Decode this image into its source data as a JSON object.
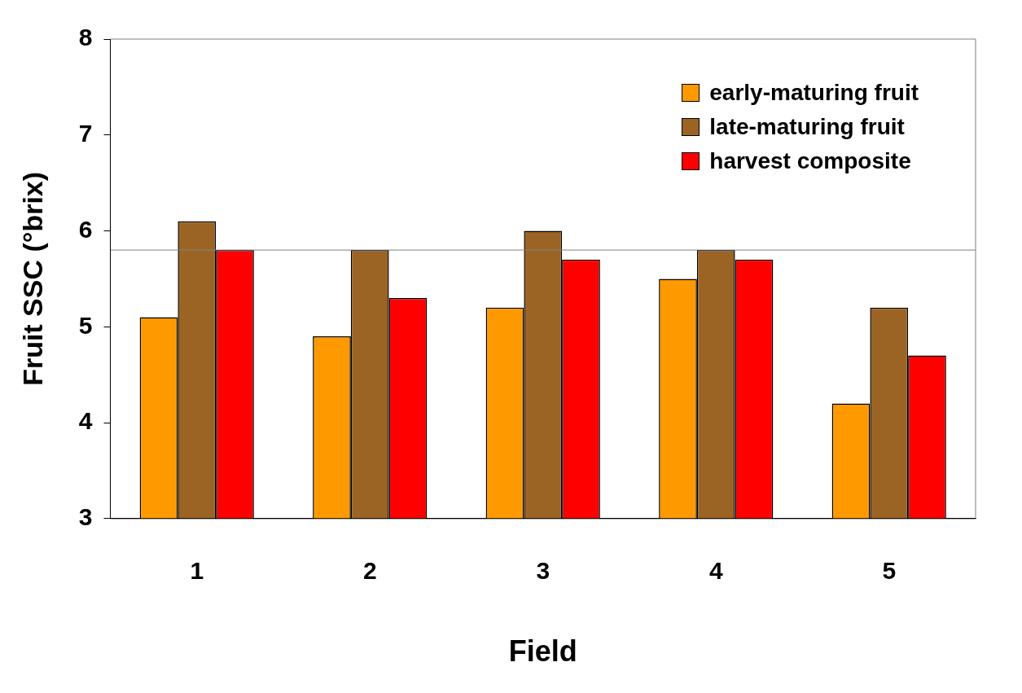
{
  "chart_data": {
    "type": "bar",
    "xlabel": "Field",
    "ylabel": "Fruit SSC (°brix)",
    "categories": [
      "1",
      "2",
      "3",
      "4",
      "5"
    ],
    "series": [
      {
        "name": "early-maturing fruit",
        "color": "#ff9900",
        "values": [
          5.1,
          4.9,
          5.2,
          5.5,
          4.2
        ]
      },
      {
        "name": "late-maturing fruit",
        "color": "#9c6424",
        "values": [
          6.1,
          5.8,
          6.0,
          5.8,
          5.2
        ]
      },
      {
        "name": "harvest composite",
        "color": "#ff0000",
        "values": [
          5.8,
          5.3,
          5.7,
          5.7,
          4.7
        ]
      }
    ],
    "ylim": [
      3,
      8
    ],
    "yticks": [
      3,
      4,
      5,
      6,
      7,
      8
    ],
    "grid": false,
    "legend": "top right",
    "ref_lines": [
      {
        "axis": "y",
        "value": 5.8,
        "color": "#808080"
      }
    ]
  }
}
